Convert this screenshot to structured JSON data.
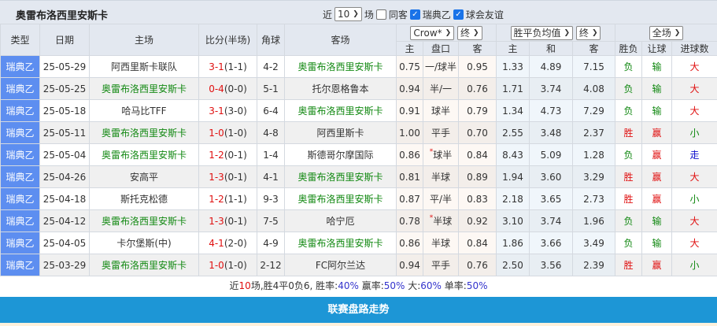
{
  "title": "奥雷布洛西里安斯卡",
  "filters": {
    "recent_label": "近",
    "count": "10",
    "count_unit": "场",
    "same_away": "同客",
    "same_away_checked": false,
    "league": "瑞典乙",
    "league_checked": true,
    "friendly": "球会友谊",
    "friendly_checked": true
  },
  "headers": {
    "type": "类型",
    "date": "日期",
    "home": "主场",
    "score": "比分(半场)",
    "corner": "角球",
    "away": "客场",
    "company": "Crow*",
    "time1": "终",
    "odds_type": "胜平负均值",
    "time2": "终",
    "scope": "全场",
    "h": "主",
    "line": "盘口",
    "a": "客",
    "oh": "主",
    "od": "和",
    "oa": "客",
    "wl": "胜负",
    "hcr": "让球",
    "ou": "进球数"
  },
  "team_color": "#118811",
  "rows": [
    {
      "type": "瑞典乙",
      "date": "25-05-29",
      "home": "阿西里斯卡联队",
      "ft": "3-1",
      "ht": "(1-1)",
      "corner": "4-2",
      "away": "奥雷布洛西里安斯卡",
      "side": "away",
      "h": "0.75",
      "line": "一/球半",
      "star": false,
      "a": "0.95",
      "oh": "1.33",
      "od": "4.89",
      "oa": "7.15",
      "wl": "负",
      "hcr": "输",
      "ou": "大"
    },
    {
      "type": "瑞典乙",
      "date": "25-05-25",
      "home": "奥雷布洛西里安斯卡",
      "ft": "0-4",
      "ht": "(0-0)",
      "corner": "5-1",
      "away": "托尔恩格鲁本",
      "side": "home",
      "h": "0.94",
      "line": "半/一",
      "star": false,
      "a": "0.76",
      "oh": "1.71",
      "od": "3.74",
      "oa": "4.08",
      "wl": "负",
      "hcr": "输",
      "ou": "大"
    },
    {
      "type": "瑞典乙",
      "date": "25-05-18",
      "home": "哈马比TFF",
      "ft": "3-1",
      "ht": "(3-0)",
      "corner": "6-4",
      "away": "奥雷布洛西里安斯卡",
      "side": "away",
      "h": "0.91",
      "line": "球半",
      "star": false,
      "a": "0.79",
      "oh": "1.34",
      "od": "4.73",
      "oa": "7.29",
      "wl": "负",
      "hcr": "输",
      "ou": "大"
    },
    {
      "type": "瑞典乙",
      "date": "25-05-11",
      "home": "奥雷布洛西里安斯卡",
      "ft": "1-0",
      "ht": "(1-0)",
      "corner": "4-8",
      "away": "阿西里斯卡",
      "side": "home",
      "h": "1.00",
      "line": "平手",
      "star": false,
      "a": "0.70",
      "oh": "2.55",
      "od": "3.48",
      "oa": "2.37",
      "wl": "胜",
      "hcr": "赢",
      "ou": "小"
    },
    {
      "type": "瑞典乙",
      "date": "25-05-04",
      "home": "奥雷布洛西里安斯卡",
      "ft": "1-2",
      "ht": "(0-1)",
      "corner": "1-4",
      "away": "斯德哥尔摩国际",
      "side": "home",
      "h": "0.86",
      "line": "球半",
      "star": true,
      "a": "0.84",
      "oh": "8.43",
      "od": "5.09",
      "oa": "1.28",
      "wl": "负",
      "hcr": "赢",
      "ou": "走"
    },
    {
      "type": "瑞典乙",
      "date": "25-04-26",
      "home": "安高平",
      "ft": "1-3",
      "ht": "(0-1)",
      "corner": "4-1",
      "away": "奥雷布洛西里安斯卡",
      "side": "away",
      "h": "0.81",
      "line": "半球",
      "star": false,
      "a": "0.89",
      "oh": "1.94",
      "od": "3.60",
      "oa": "3.29",
      "wl": "胜",
      "hcr": "赢",
      "ou": "大"
    },
    {
      "type": "瑞典乙",
      "date": "25-04-18",
      "home": "斯托克松德",
      "ft": "1-2",
      "ht": "(1-1)",
      "corner": "9-3",
      "away": "奥雷布洛西里安斯卡",
      "side": "away",
      "h": "0.87",
      "line": "平/半",
      "star": false,
      "a": "0.83",
      "oh": "2.18",
      "od": "3.65",
      "oa": "2.73",
      "wl": "胜",
      "hcr": "赢",
      "ou": "小"
    },
    {
      "type": "瑞典乙",
      "date": "25-04-12",
      "home": "奥雷布洛西里安斯卡",
      "ft": "1-3",
      "ht": "(0-1)",
      "corner": "7-5",
      "away": "哈宁厄",
      "side": "home",
      "h": "0.78",
      "line": "半球",
      "star": true,
      "a": "0.92",
      "oh": "3.10",
      "od": "3.74",
      "oa": "1.96",
      "wl": "负",
      "hcr": "输",
      "ou": "大"
    },
    {
      "type": "瑞典乙",
      "date": "25-04-05",
      "home": "卡尔堡斯(中)",
      "ft": "4-1",
      "ht": "(2-0)",
      "corner": "4-9",
      "away": "奥雷布洛西里安斯卡",
      "side": "away",
      "h": "0.86",
      "line": "半球",
      "star": false,
      "a": "0.84",
      "oh": "1.86",
      "od": "3.66",
      "oa": "3.49",
      "wl": "负",
      "hcr": "输",
      "ou": "大"
    },
    {
      "type": "瑞典乙",
      "date": "25-03-29",
      "home": "奥雷布洛西里安斯卡",
      "ft": "1-0",
      "ht": "(1-0)",
      "corner": "2-12",
      "away": "FC阿尔兰达",
      "side": "home",
      "h": "0.94",
      "line": "平手",
      "star": false,
      "a": "0.76",
      "oh": "2.50",
      "od": "3.56",
      "oa": "2.39",
      "wl": "胜",
      "hcr": "赢",
      "ou": "小"
    }
  ],
  "summary": {
    "p1": "近",
    "n": "10",
    "p2": "场,胜4平0负6, 胜率:",
    "win_rate": "40%",
    "p3": " 赢率:",
    "hc_rate": "50%",
    "p4": " 大:",
    "over_rate": "60%",
    "p5": " 单率:",
    "odd_rate": "50%"
  },
  "section_title": "联赛盘路走势"
}
